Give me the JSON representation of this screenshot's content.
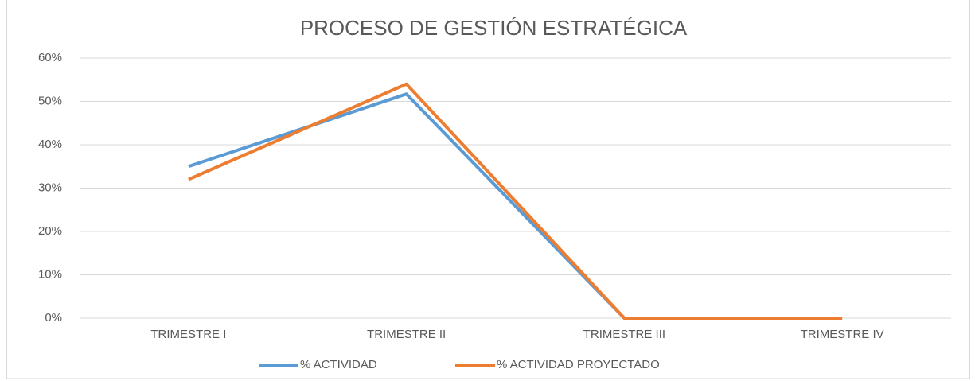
{
  "chart_data": {
    "type": "line",
    "title": "PROCESO DE GESTIÓN  ESTRATÉGICA",
    "categories": [
      "TRIMESTRE I",
      "TRIMESTRE II",
      "TRIMESTRE III",
      "TRIMESTRE IV"
    ],
    "series": [
      {
        "name": "% ACTIVIDAD",
        "color": "#5b9bd5",
        "values": [
          35,
          51.7,
          0,
          0
        ]
      },
      {
        "name": "% ACTIVIDAD PROYECTADO",
        "color": "#ed7d31",
        "values": [
          32,
          54,
          0,
          0
        ]
      }
    ],
    "ylim": [
      0,
      60
    ],
    "yticks": [
      {
        "value": 0,
        "label": "0%"
      },
      {
        "value": 10,
        "label": "10%"
      },
      {
        "value": 20,
        "label": "20%"
      },
      {
        "value": 30,
        "label": "30%"
      },
      {
        "value": 40,
        "label": "40%"
      },
      {
        "value": 50,
        "label": "50%"
      },
      {
        "value": 60,
        "label": "60%"
      }
    ],
    "grid": true,
    "legend": "bottom"
  }
}
